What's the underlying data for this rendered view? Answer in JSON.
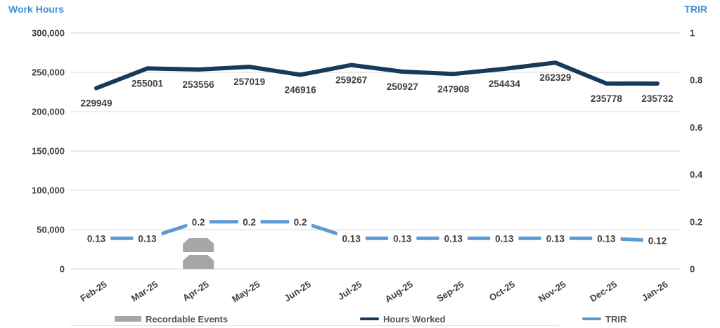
{
  "titles": {
    "left_axis_title": "Work Hours",
    "right_axis_title": "TRIR"
  },
  "legend": {
    "items": [
      {
        "label": "Recordable Events",
        "swatch": "bar",
        "color": "#a6a6a6"
      },
      {
        "label": "Hours Worked",
        "swatch": "line",
        "color": "#17395c"
      },
      {
        "label": "TRIR",
        "swatch": "line",
        "color": "#5b9bd5"
      }
    ]
  },
  "colors": {
    "title_blue": "#4191d6",
    "hours_line": "#17395c",
    "trir_line": "#5b9bd5",
    "recordable_bar": "#a6a6a6",
    "gridline": "#d9d9d9",
    "label_text": "#404040"
  },
  "chart_data": {
    "type": "line",
    "subtype": "dual-axis combo: two line series with data labels plus stacked unit-block bar series",
    "categories": [
      "Feb-25",
      "Mar-25",
      "Apr-25",
      "May-25",
      "Jun-25",
      "Jul-25",
      "Aug-25",
      "Sep-25",
      "Oct-25",
      "Nov-25",
      "Dec-25",
      "Jan-26"
    ],
    "series": [
      {
        "name": "Hours Worked",
        "type": "line",
        "axis": "left",
        "color": "#17395c",
        "values": [
          229949,
          255001,
          253556,
          257019,
          246916,
          259267,
          250927,
          247908,
          254434,
          262329,
          235778,
          235732
        ],
        "data_labels": [
          "229949",
          "255001",
          "253556",
          "257019",
          "246916",
          "259267",
          "250927",
          "247908",
          "254434",
          "262329",
          "235778",
          "235732"
        ]
      },
      {
        "name": "TRIR",
        "type": "line",
        "axis": "right",
        "color": "#5b9bd5",
        "values": [
          0.13,
          0.13,
          0.2,
          0.2,
          0.2,
          0.13,
          0.13,
          0.13,
          0.13,
          0.13,
          0.13,
          0.12
        ],
        "data_labels": [
          "0.13",
          "0.13",
          "0.2",
          "0.2",
          "0.2",
          "0.13",
          "0.13",
          "0.13",
          "0.13",
          "0.13",
          "0.13",
          "0.12"
        ]
      },
      {
        "name": "Recordable Events",
        "type": "bar",
        "axis": "none",
        "color": "#a6a6a6",
        "values": [
          0,
          0,
          2,
          0,
          0,
          0,
          0,
          0,
          0,
          0,
          0,
          0
        ]
      }
    ],
    "left_axis": {
      "title": "Work Hours",
      "min": 0,
      "max": 300000,
      "step": 50000,
      "tick_labels": [
        "0",
        "50,000",
        "100,000",
        "150,000",
        "200,000",
        "250,000",
        "300,000"
      ]
    },
    "right_axis": {
      "title": "TRIR",
      "min": 0,
      "max": 1,
      "step": 0.2,
      "tick_labels": [
        "0",
        "0.2",
        "0.4",
        "0.6",
        "0.8",
        "1"
      ]
    },
    "grid": true,
    "legend_position": "bottom"
  }
}
